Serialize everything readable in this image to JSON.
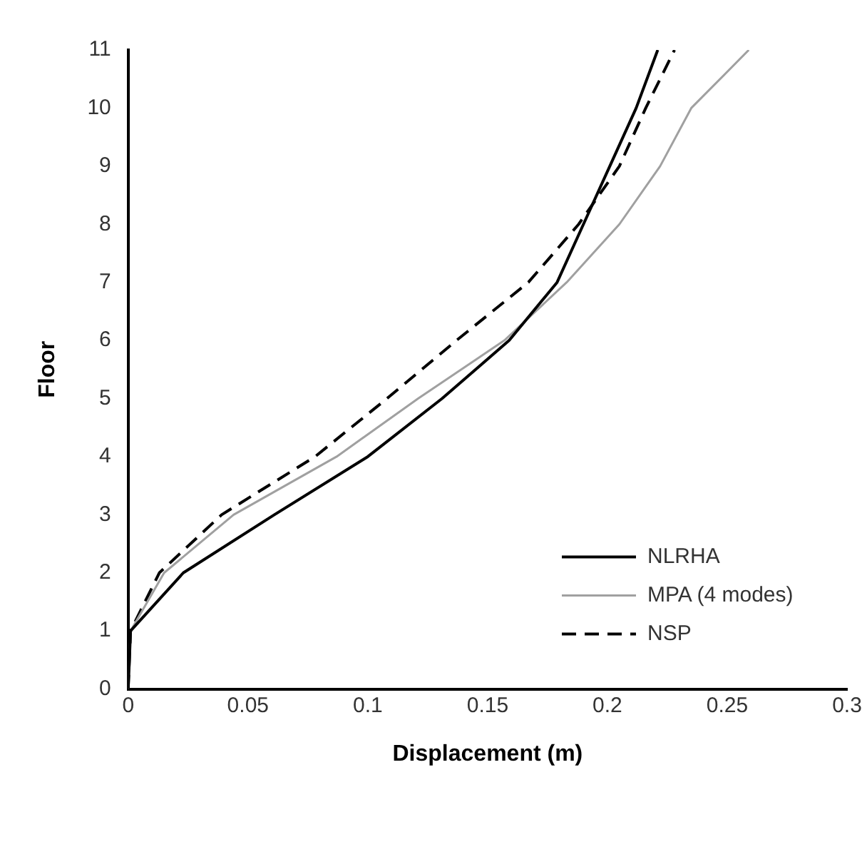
{
  "chart_data": {
    "type": "line",
    "xlabel": "Displacement (m)",
    "ylabel": "Floor",
    "xlim": [
      0,
      0.3
    ],
    "xticks": [
      0,
      0.05,
      0.1,
      0.15,
      0.2,
      0.25,
      0.3
    ],
    "ylim": [
      0,
      11
    ],
    "yticks": [
      0,
      1,
      2,
      3,
      4,
      5,
      6,
      7,
      8,
      9,
      10,
      11
    ],
    "grid": false,
    "legend": "bottom right",
    "marker": "none",
    "series": [
      {
        "name": "NLRHA",
        "color": "#000000",
        "line_style": "solid",
        "x": [
          0,
          0.001,
          0.023,
          0.061,
          0.1,
          0.131,
          0.159,
          0.179,
          0.19,
          0.201,
          0.212,
          0.221
        ],
        "values": [
          0,
          1,
          2,
          3,
          4,
          5,
          6,
          7,
          8,
          9,
          10,
          11
        ]
      },
      {
        "name": "MPA (4 modes)",
        "color": "#a0a0a0",
        "line_style": "solid",
        "x": [
          0,
          0.001,
          0.015,
          0.044,
          0.087,
          0.121,
          0.157,
          0.183,
          0.205,
          0.222,
          0.235,
          0.259
        ],
        "values": [
          0,
          1,
          2,
          3,
          4,
          5,
          6,
          7,
          8,
          9,
          10,
          11
        ]
      },
      {
        "name": "NSP",
        "color": "#000000",
        "line_style": "dashed",
        "x": [
          0,
          0.001,
          0.013,
          0.039,
          0.078,
          0.108,
          0.137,
          0.167,
          0.188,
          0.205,
          0.216,
          0.228
        ],
        "values": [
          0,
          1,
          2,
          3,
          4,
          5,
          6,
          7,
          8,
          9,
          10,
          11
        ]
      }
    ]
  }
}
